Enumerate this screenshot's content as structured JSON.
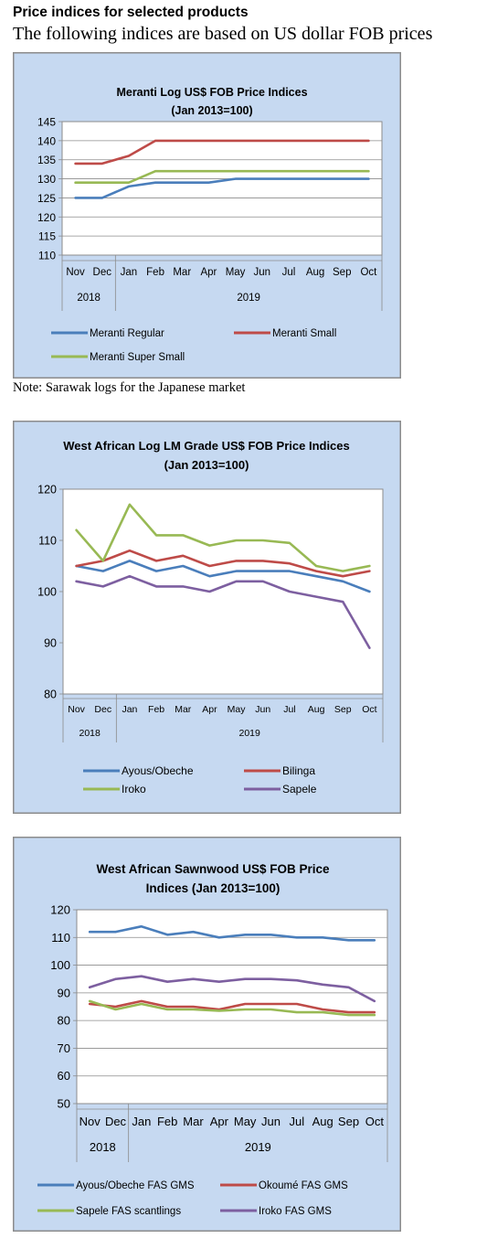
{
  "header": {
    "title": "Price indices for selected products",
    "subtitle": "The following indices are based on US dollar FOB prices"
  },
  "note": "Note: Sarawak logs for the Japanese market",
  "chart_data": [
    {
      "type": "line",
      "title": [
        "Meranti Log US$ FOB Price Indices",
        "(Jan 2013=100)"
      ],
      "categories": [
        "Nov",
        "Dec",
        "Jan",
        "Feb",
        "Mar",
        "Apr",
        "May",
        "Jun",
        "Jul",
        "Aug",
        "Sep",
        "Oct"
      ],
      "year_groups": [
        {
          "label": "2018",
          "span": 2
        },
        {
          "label": "2019",
          "span": 10
        }
      ],
      "ylim": [
        110,
        145
      ],
      "yticks": [
        110,
        115,
        120,
        125,
        130,
        135,
        140,
        145
      ],
      "grid": true,
      "legend_position": "bottom",
      "series": [
        {
          "name": "Meranti Regular",
          "color": "#4a7ebb",
          "values": [
            125,
            125,
            128,
            129,
            129,
            129,
            130,
            130,
            130,
            130,
            130,
            130
          ]
        },
        {
          "name": "Meranti Small",
          "color": "#be4b48",
          "values": [
            134,
            134,
            136,
            140,
            140,
            140,
            140,
            140,
            140,
            140,
            140,
            140
          ]
        },
        {
          "name": "Meranti Super Small",
          "color": "#98b954",
          "values": [
            129,
            129,
            129,
            132,
            132,
            132,
            132,
            132,
            132,
            132,
            132,
            132
          ]
        }
      ]
    },
    {
      "type": "line",
      "title": [
        "West African Log LM Grade US$ FOB Price Indices",
        "(Jan 2013=100)"
      ],
      "categories": [
        "Nov",
        "Dec",
        "Jan",
        "Feb",
        "Mar",
        "Apr",
        "May",
        "Jun",
        "Jul",
        "Aug",
        "Sep",
        "Oct"
      ],
      "year_groups": [
        {
          "label": "2018",
          "span": 2
        },
        {
          "label": "2019",
          "span": 10
        }
      ],
      "ylim": [
        80,
        120
      ],
      "yticks": [
        80,
        90,
        100,
        110,
        120
      ],
      "grid": false,
      "legend_position": "bottom",
      "series": [
        {
          "name": "Ayous/Obeche",
          "color": "#4a7ebb",
          "values": [
            105,
            104,
            106,
            104,
            105,
            103,
            104,
            104,
            104,
            103,
            102,
            100
          ]
        },
        {
          "name": "Bilinga",
          "color": "#be4b48",
          "values": [
            105,
            106,
            108,
            106,
            107,
            105,
            106,
            106,
            105.5,
            104,
            103,
            104
          ]
        },
        {
          "name": "Iroko",
          "color": "#98b954",
          "values": [
            112,
            106,
            117,
            111,
            111,
            109,
            110,
            110,
            109.5,
            105,
            104,
            105
          ]
        },
        {
          "name": "Sapele",
          "color": "#7d5fa0",
          "values": [
            102,
            101,
            103,
            101,
            101,
            100,
            102,
            102,
            100,
            99,
            98,
            89
          ]
        }
      ]
    },
    {
      "type": "line",
      "title": [
        "West African Sawnwood US$ FOB Price",
        "Indices (Jan 2013=100)"
      ],
      "categories": [
        "Nov",
        "Dec",
        "Jan",
        "Feb",
        "Mar",
        "Apr",
        "May",
        "Jun",
        "Jul",
        "Aug",
        "Sep",
        "Oct"
      ],
      "year_groups": [
        {
          "label": "2018",
          "span": 2
        },
        {
          "label": "2019",
          "span": 10
        }
      ],
      "ylim": [
        50,
        120
      ],
      "yticks": [
        50,
        60,
        70,
        80,
        90,
        100,
        110,
        120
      ],
      "grid": true,
      "legend_position": "bottom",
      "series": [
        {
          "name": "Ayous/Obeche FAS GMS",
          "color": "#4a7ebb",
          "values": [
            112,
            112,
            114,
            111,
            112,
            110,
            111,
            111,
            110,
            110,
            109,
            109
          ]
        },
        {
          "name": "Okoumé FAS GMS",
          "color": "#be4b48",
          "values": [
            86,
            85,
            87,
            85,
            85,
            84,
            86,
            86,
            86,
            84,
            83,
            83
          ]
        },
        {
          "name": "Sapele FAS scantlings",
          "color": "#98b954",
          "values": [
            87,
            84,
            86,
            84,
            84,
            83.5,
            84,
            84,
            83,
            83,
            82,
            82
          ]
        },
        {
          "name": "Iroko FAS GMS",
          "color": "#7d5fa0",
          "values": [
            92,
            95,
            96,
            94,
            95,
            94,
            95,
            95,
            94.5,
            93,
            92,
            87
          ]
        }
      ]
    }
  ]
}
